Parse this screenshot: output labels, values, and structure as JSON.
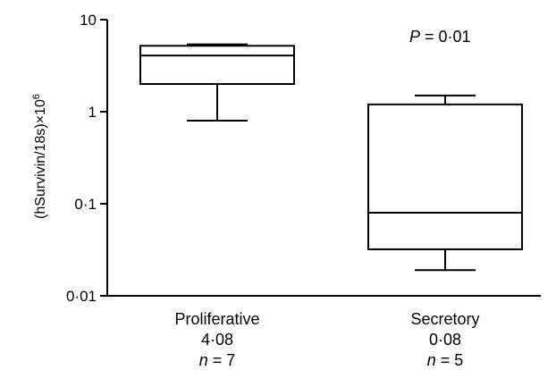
{
  "chart_data": {
    "type": "box",
    "ylabel": "(hSurvivin/18s)×10",
    "ylabel_exponent": "6",
    "yscale": "log",
    "ylim": [
      0.01,
      10
    ],
    "yticks": [
      {
        "value": 10,
        "label": "10"
      },
      {
        "value": 1,
        "label": "1"
      },
      {
        "value": 0.1,
        "label": "0·1"
      },
      {
        "value": 0.01,
        "label": "0·01"
      }
    ],
    "annotation": {
      "italic": "P",
      "text": " = 0·01"
    },
    "groups": [
      {
        "label": "Proliferative",
        "stat": "4·08",
        "n_prefix": "n",
        "n_text": " = 7",
        "whisker_low": 0.8,
        "q1": 2.0,
        "median": 4.08,
        "q3": 5.2,
        "whisker_high": 5.4
      },
      {
        "label": "Secretory",
        "stat": "0·08",
        "n_prefix": "n",
        "n_text": " = 5",
        "whisker_low": 0.019,
        "q1": 0.032,
        "median": 0.08,
        "q3": 1.2,
        "whisker_high": 1.5
      }
    ]
  }
}
